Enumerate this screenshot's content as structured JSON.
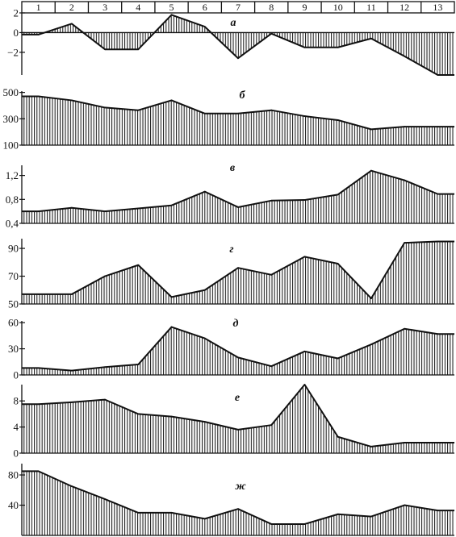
{
  "columns": [
    "1",
    "2",
    "3",
    "4",
    "5",
    "6",
    "7",
    "8",
    "9",
    "10",
    "11",
    "12",
    "13"
  ],
  "chart_data": [
    {
      "type": "area",
      "panel_label": "а",
      "x": [
        1,
        2,
        3,
        4,
        5,
        6,
        7,
        8,
        9,
        10,
        11,
        12,
        13
      ],
      "values": [
        -0.2,
        0.9,
        -1.7,
        -1.7,
        1.8,
        0.6,
        -2.6,
        -0.1,
        -1.5,
        -1.5,
        -0.6,
        -2.4,
        -4.3
      ],
      "baseline": 0,
      "ylim": [
        -4.3,
        2
      ],
      "yticks": [
        -2,
        0,
        2
      ],
      "ytick_labels": [
        "−2",
        "0",
        "2"
      ],
      "title": "",
      "xlabel": "",
      "ylabel": ""
    },
    {
      "type": "area",
      "panel_label": "б",
      "x": [
        1,
        2,
        3,
        4,
        5,
        6,
        7,
        8,
        9,
        10,
        11,
        12,
        13
      ],
      "values": [
        470,
        440,
        385,
        365,
        440,
        340,
        340,
        365,
        320,
        290,
        220,
        240,
        240
      ],
      "baseline": 100,
      "ylim": [
        100,
        510
      ],
      "yticks": [
        100,
        300,
        500
      ],
      "ytick_labels": [
        "100",
        "300",
        "500"
      ],
      "title": "",
      "xlabel": "",
      "ylabel": ""
    },
    {
      "type": "area",
      "panel_label": "в",
      "x": [
        1,
        2,
        3,
        4,
        5,
        6,
        7,
        8,
        9,
        10,
        11,
        12,
        13
      ],
      "values": [
        0.6,
        0.66,
        0.6,
        0.65,
        0.7,
        0.93,
        0.67,
        0.78,
        0.79,
        0.88,
        1.28,
        1.12,
        0.89
      ],
      "baseline": 0.4,
      "ylim": [
        0.4,
        1.37
      ],
      "yticks": [
        0.4,
        0.8,
        1.2
      ],
      "ytick_labels": [
        "0,4",
        "0,8",
        "1,2"
      ],
      "title": "",
      "xlabel": "",
      "ylabel": ""
    },
    {
      "type": "area",
      "panel_label": "г",
      "x": [
        1,
        2,
        3,
        4,
        5,
        6,
        7,
        8,
        9,
        10,
        11,
        12,
        13
      ],
      "values": [
        57,
        57,
        70,
        78,
        55,
        60,
        76,
        71,
        84,
        79,
        54,
        94,
        95
      ],
      "baseline": 50,
      "ylim": [
        50,
        97
      ],
      "yticks": [
        50,
        70,
        90
      ],
      "ytick_labels": [
        "50",
        "70",
        "90"
      ],
      "title": "",
      "xlabel": "",
      "ylabel": ""
    },
    {
      "type": "area",
      "panel_label": "д",
      "x": [
        1,
        2,
        3,
        4,
        5,
        6,
        7,
        8,
        9,
        10,
        11,
        12,
        13
      ],
      "values": [
        8,
        5,
        9,
        12,
        55,
        42,
        20,
        10,
        27,
        19,
        35,
        53,
        47
      ],
      "baseline": 0,
      "ylim": [
        0,
        62
      ],
      "yticks": [
        0,
        30,
        60
      ],
      "ytick_labels": [
        "0",
        "30",
        "60"
      ],
      "title": "",
      "xlabel": "",
      "ylabel": ""
    },
    {
      "type": "area",
      "panel_label": "е",
      "x": [
        1,
        2,
        3,
        4,
        5,
        6,
        7,
        8,
        9,
        10,
        11,
        12,
        13
      ],
      "values": [
        7.5,
        7.8,
        8.2,
        6.0,
        5.6,
        4.8,
        3.6,
        4.3,
        10.5,
        2.5,
        1.0,
        1.6,
        1.6
      ],
      "baseline": 0,
      "ylim": [
        0,
        10.5
      ],
      "yticks": [
        0,
        4,
        8
      ],
      "ytick_labels": [
        "0",
        "4",
        "8"
      ],
      "title": "",
      "xlabel": "",
      "ylabel": ""
    },
    {
      "type": "area",
      "panel_label": "ж",
      "x": [
        1,
        2,
        3,
        4,
        5,
        6,
        7,
        8,
        9,
        10,
        11,
        12,
        13
      ],
      "values": [
        85,
        65,
        48,
        30,
        30,
        22,
        35,
        15,
        15,
        28,
        25,
        40,
        33
      ],
      "baseline": 0,
      "ylim": [
        0,
        95
      ],
      "yticks": [
        40,
        80
      ],
      "ytick_labels": [
        "40",
        "80"
      ],
      "title": "",
      "xlabel": "",
      "ylabel": ""
    }
  ]
}
